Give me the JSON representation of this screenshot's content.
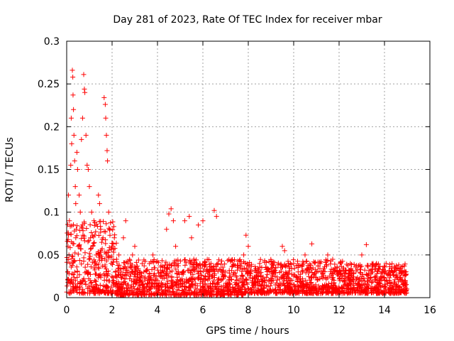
{
  "chart_data": {
    "type": "scatter",
    "title": "Day 281 of 2023, Rate Of TEC Index for receiver mbar",
    "xlabel": "GPS time / hours",
    "ylabel": "ROTI / TECUs",
    "xlim": [
      0,
      16
    ],
    "ylim": [
      0,
      0.3
    ],
    "grid": true,
    "x_ticks": [
      0,
      2,
      4,
      6,
      8,
      10,
      12,
      14,
      16
    ],
    "x_tick_labels": [
      "0",
      "2",
      "4",
      "6",
      "8",
      "10",
      "12",
      "14",
      "16"
    ],
    "y_ticks": [
      0,
      0.05,
      0.1,
      0.15,
      0.2,
      0.25,
      0.3
    ],
    "y_tick_labels": [
      "0",
      "0.05",
      "0.1",
      "0.15",
      "0.2",
      "0.25",
      "0.3"
    ],
    "marker": "+",
    "color": "#ff0000",
    "series": [
      {
        "name": "ROTI",
        "points": [
          [
            0.05,
            0.03
          ],
          [
            0.08,
            0.12
          ],
          [
            0.1,
            0.05
          ],
          [
            0.12,
            0.09
          ],
          [
            0.15,
            0.02
          ],
          [
            0.18,
            0.155
          ],
          [
            0.2,
            0.21
          ],
          [
            0.22,
            0.18
          ],
          [
            0.25,
            0.266
          ],
          [
            0.27,
            0.258
          ],
          [
            0.28,
            0.237
          ],
          [
            0.3,
            0.22
          ],
          [
            0.32,
            0.19
          ],
          [
            0.35,
            0.16
          ],
          [
            0.38,
            0.13
          ],
          [
            0.4,
            0.11
          ],
          [
            0.42,
            0.08
          ],
          [
            0.45,
            0.17
          ],
          [
            0.48,
            0.15
          ],
          [
            0.5,
            0.06
          ],
          [
            0.55,
            0.12
          ],
          [
            0.6,
            0.1
          ],
          [
            0.65,
            0.185
          ],
          [
            0.7,
            0.21
          ],
          [
            0.75,
            0.261
          ],
          [
            0.78,
            0.244
          ],
          [
            0.8,
            0.24
          ],
          [
            0.85,
            0.19
          ],
          [
            0.9,
            0.155
          ],
          [
            0.95,
            0.15
          ],
          [
            1.0,
            0.13
          ],
          [
            1.05,
            0.07
          ],
          [
            1.1,
            0.1
          ],
          [
            1.15,
            0.06
          ],
          [
            1.2,
            0.09
          ],
          [
            1.3,
            0.05
          ],
          [
            1.4,
            0.12
          ],
          [
            1.45,
            0.11
          ],
          [
            1.5,
            0.08
          ],
          [
            1.6,
            0.07
          ],
          [
            1.65,
            0.234
          ],
          [
            1.7,
            0.226
          ],
          [
            1.72,
            0.21
          ],
          [
            1.75,
            0.19
          ],
          [
            1.78,
            0.172
          ],
          [
            1.8,
            0.16
          ],
          [
            1.85,
            0.1
          ],
          [
            1.9,
            0.08
          ],
          [
            2.0,
            0.06
          ],
          [
            2.1,
            0.07
          ],
          [
            2.2,
            0.045
          ],
          [
            2.3,
            0.05
          ],
          [
            2.4,
            0.03
          ],
          [
            2.5,
            0.07
          ],
          [
            2.6,
            0.09
          ],
          [
            2.7,
            0.04
          ],
          [
            2.8,
            0.025
          ],
          [
            2.9,
            0.05
          ],
          [
            3.0,
            0.06
          ],
          [
            3.2,
            0.015
          ],
          [
            3.4,
            0.03
          ],
          [
            3.6,
            0.02
          ],
          [
            3.8,
            0.05
          ],
          [
            4.0,
            0.02
          ],
          [
            4.2,
            0.03
          ],
          [
            4.4,
            0.08
          ],
          [
            4.5,
            0.098
          ],
          [
            4.6,
            0.104
          ],
          [
            4.7,
            0.09
          ],
          [
            4.8,
            0.06
          ],
          [
            5.0,
            0.02
          ],
          [
            5.1,
            0.005
          ],
          [
            5.2,
            0.09
          ],
          [
            5.4,
            0.095
          ],
          [
            5.5,
            0.07
          ],
          [
            5.6,
            0.045
          ],
          [
            5.8,
            0.085
          ],
          [
            6.0,
            0.09
          ],
          [
            6.1,
            0.02
          ],
          [
            6.3,
            0.03
          ],
          [
            6.5,
            0.102
          ],
          [
            6.6,
            0.095
          ],
          [
            6.8,
            0.02
          ],
          [
            7.0,
            0.03
          ],
          [
            7.5,
            0.02
          ],
          [
            7.8,
            0.05
          ],
          [
            7.9,
            0.073
          ],
          [
            8.0,
            0.06
          ],
          [
            8.5,
            0.04
          ],
          [
            9.0,
            0.03
          ],
          [
            9.5,
            0.06
          ],
          [
            9.6,
            0.055
          ],
          [
            10.0,
            0.04
          ],
          [
            10.5,
            0.05
          ],
          [
            10.8,
            0.063
          ],
          [
            11.0,
            0.03
          ],
          [
            11.5,
            0.05
          ],
          [
            12.0,
            0.03
          ],
          [
            12.5,
            0.04
          ],
          [
            13.0,
            0.05
          ],
          [
            13.2,
            0.062
          ],
          [
            13.5,
            0.04
          ],
          [
            14.0,
            0.03
          ],
          [
            14.5,
            0.025
          ],
          [
            14.9,
            0.02
          ]
        ]
      }
    ],
    "dense_bands": [
      {
        "x_range": [
          0,
          2.2
        ],
        "y_range": [
          0.005,
          0.09
        ]
      },
      {
        "x_range": [
          2.2,
          4.4
        ],
        "y_range": [
          0.003,
          0.045
        ]
      },
      {
        "x_range": [
          4.4,
          7.8
        ],
        "y_range": [
          0.003,
          0.045
        ]
      },
      {
        "x_range": [
          7.8,
          12.2
        ],
        "y_range": [
          0.005,
          0.045
        ]
      },
      {
        "x_range": [
          12.2,
          15.0
        ],
        "y_range": [
          0.005,
          0.04
        ]
      }
    ]
  }
}
